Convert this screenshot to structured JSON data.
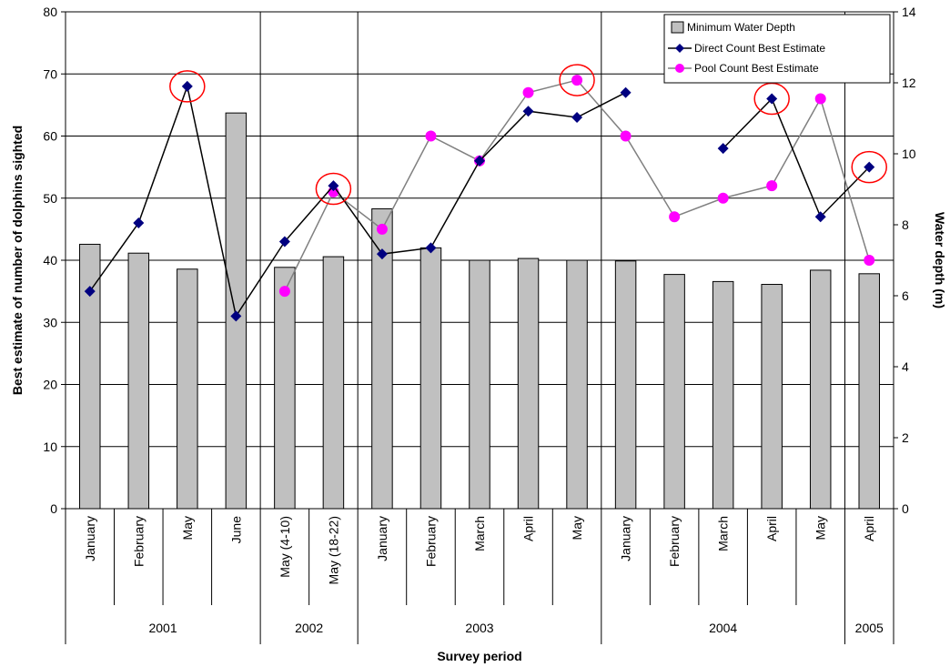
{
  "chart_data": {
    "type": "bar",
    "title": "",
    "xlabel": "Survey period",
    "ylabel": "Best estimate of number of dolphins sighted",
    "y2label": "Water depth (m)",
    "ylim": [
      0,
      80
    ],
    "y2lim": [
      0,
      14
    ],
    "yticks": [
      "0",
      "10",
      "20",
      "30",
      "40",
      "50",
      "60",
      "70",
      "80"
    ],
    "y2ticks": [
      "0",
      "2",
      "4",
      "6",
      "8",
      "10",
      "12",
      "14"
    ],
    "categories": [
      "January",
      "February",
      "May",
      "June",
      "May (4-10)",
      "May (18-22)",
      "January",
      "February",
      "March",
      "April",
      "May",
      "January",
      "February",
      "March",
      "April",
      "May",
      "April"
    ],
    "years": [
      {
        "label": "2001",
        "count": 4
      },
      {
        "label": "2002",
        "count": 2
      },
      {
        "label": "2003",
        "count": 5
      },
      {
        "label": "2004",
        "count": 5
      },
      {
        "label": "2005",
        "count": 1
      }
    ],
    "grid": true,
    "legend_position": "top-right",
    "series": [
      {
        "name": "Minimum Water Depth",
        "type": "bar",
        "axis": "right",
        "color": "#c0c0c0",
        "values": [
          7.45,
          7.2,
          6.75,
          11.15,
          6.8,
          7.1,
          8.45,
          7.35,
          7.0,
          7.05,
          7.0,
          6.98,
          6.6,
          6.4,
          6.32,
          6.72,
          6.62
        ]
      },
      {
        "name": "Direct Count Best Estimate",
        "type": "line",
        "axis": "left",
        "color": "#000080",
        "line_color": "#000000",
        "marker": "diamond",
        "values": [
          35,
          46,
          68,
          31,
          43,
          52,
          41,
          42,
          56,
          64,
          63,
          67,
          null,
          58,
          66,
          47,
          55
        ]
      },
      {
        "name": "Pool Count Best Estimate",
        "type": "line",
        "axis": "left",
        "color": "#ff00ff",
        "line_color": "#808080",
        "marker": "circle",
        "values": [
          null,
          null,
          null,
          null,
          35,
          51,
          45,
          60,
          56,
          67,
          69,
          60,
          47,
          50,
          52,
          66,
          40
        ]
      }
    ],
    "highlighted_points": [
      {
        "category_index": 2,
        "value": 68
      },
      {
        "category_index": 5,
        "value": 51.5
      },
      {
        "category_index": 10,
        "value": 69
      },
      {
        "category_index": 14,
        "value": 66
      },
      {
        "category_index": 16,
        "value": 55
      }
    ],
    "highlight_color": "#ff0000"
  }
}
